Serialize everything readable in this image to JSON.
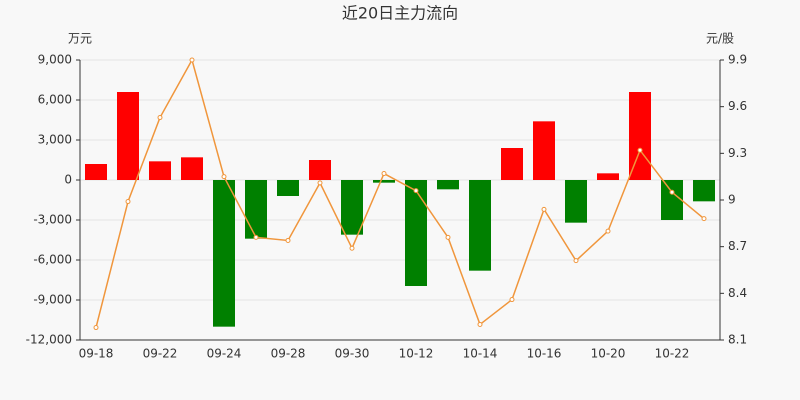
{
  "chart_data": {
    "type": "bar_line",
    "title": "近20日主力流向",
    "y_unit": "万元",
    "y2_unit": "元/股",
    "categories": [
      "09-18",
      null,
      "09-22",
      null,
      "09-24",
      null,
      "09-28",
      null,
      "09-30",
      null,
      "10-12",
      null,
      "10-14",
      null,
      "10-16",
      null,
      "10-20",
      null,
      "10-22",
      null
    ],
    "series": [
      {
        "type": "bar",
        "positive_color": "#ff0000",
        "negative_color": "#008000",
        "values": [
          1200,
          6600,
          1400,
          1700,
          -11000,
          -4400,
          -1200,
          1500,
          -4100,
          -200,
          -7950,
          -700,
          -6800,
          2400,
          4400,
          -3200,
          500,
          6600,
          -3000,
          -1600
        ]
      },
      {
        "type": "line",
        "axis": "y2",
        "color": "#f0963c",
        "values": [
          8.18,
          8.99,
          9.53,
          9.9,
          9.15,
          8.76,
          8.74,
          9.11,
          8.69,
          9.17,
          9.06,
          8.76,
          8.2,
          8.36,
          8.94,
          8.61,
          8.8,
          9.32,
          9.05,
          8.88
        ]
      }
    ],
    "ylim": [
      -12000,
      9000
    ],
    "yticks": [
      {
        "value": -12000,
        "label": "-12,000"
      },
      {
        "value": -9000,
        "label": "-9,000"
      },
      {
        "value": -6000,
        "label": "-6,000"
      },
      {
        "value": -3000,
        "label": "-3,000"
      },
      0,
      {
        "value": 3000,
        "label": "3,000"
      },
      {
        "value": 6000,
        "label": "6,000"
      },
      {
        "value": 9000,
        "label": "9,000"
      }
    ],
    "y2lim": [
      8.1,
      9.9
    ],
    "y2ticks": [
      8.1,
      8.4,
      8.7,
      9,
      9.3,
      9.6,
      9.9
    ],
    "grid": true
  }
}
